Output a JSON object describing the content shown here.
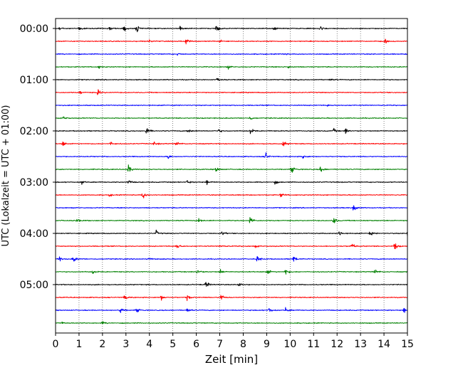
{
  "chart_data": {
    "type": "line",
    "xlabel": "Zeit  [min]",
    "ylabel": "UTC (Lokalzeit = UTC + 01:00)",
    "xlim": [
      0,
      15
    ],
    "x_ticks": [
      0,
      1,
      2,
      3,
      4,
      5,
      6,
      7,
      8,
      9,
      10,
      11,
      12,
      13,
      14,
      15
    ],
    "y_tick_labels": [
      "00:00",
      "01:00",
      "02:00",
      "03:00",
      "04:00",
      "05:00"
    ],
    "minutes_per_trace": 15,
    "trace_colors": [
      "#000000",
      "#ff0000",
      "#0000ff",
      "#008000"
    ],
    "grid": "vertical-dotted",
    "traces": [
      {
        "start": "00:00",
        "color": "#000000",
        "events": [
          [
            0.15,
            0.5
          ],
          [
            1.0,
            0.7
          ],
          [
            2.3,
            0.5
          ],
          [
            2.9,
            0.7
          ],
          [
            3.45,
            0.9
          ],
          [
            5.3,
            0.5
          ],
          [
            6.85,
            1.0
          ],
          [
            9.3,
            0.4
          ],
          [
            11.25,
            0.9
          ]
        ]
      },
      {
        "start": "00:15",
        "color": "#ff0000",
        "events": [
          [
            4.0,
            0.4
          ],
          [
            5.55,
            0.7
          ],
          [
            7.0,
            0.3
          ],
          [
            14.05,
            0.4
          ]
        ]
      },
      {
        "start": "00:30",
        "color": "#0000ff",
        "events": [
          [
            5.2,
            0.25
          ],
          [
            9.7,
            0.2
          ]
        ]
      },
      {
        "start": "00:45",
        "color": "#008000",
        "events": [
          [
            1.85,
            0.3
          ],
          [
            7.35,
            0.4
          ],
          [
            9.9,
            0.3
          ]
        ]
      },
      {
        "start": "01:00",
        "color": "#000000",
        "events": [
          [
            6.9,
            0.4
          ],
          [
            11.65,
            0.3
          ]
        ]
      },
      {
        "start": "01:15",
        "color": "#ff0000",
        "events": [
          [
            1.0,
            0.5
          ],
          [
            1.8,
            0.8
          ]
        ]
      },
      {
        "start": "01:30",
        "color": "#0000ff",
        "events": [
          [
            11.6,
            0.2
          ]
        ]
      },
      {
        "start": "01:45",
        "color": "#008000",
        "events": [
          [
            0.35,
            0.4
          ],
          [
            8.3,
            0.5
          ]
        ]
      },
      {
        "start": "02:00",
        "color": "#000000",
        "events": [
          [
            3.85,
            0.9
          ],
          [
            5.65,
            0.6
          ],
          [
            6.95,
            0.4
          ],
          [
            8.3,
            0.9
          ],
          [
            11.85,
            0.5
          ],
          [
            12.35,
            0.7
          ]
        ]
      },
      {
        "start": "02:15",
        "color": "#ff0000",
        "events": [
          [
            0.3,
            0.6
          ],
          [
            2.35,
            0.6
          ],
          [
            4.2,
            0.5
          ],
          [
            5.15,
            0.6
          ],
          [
            9.7,
            0.8
          ]
        ]
      },
      {
        "start": "02:30",
        "color": "#0000ff",
        "events": [
          [
            4.8,
            0.5
          ],
          [
            8.95,
            0.9
          ],
          [
            10.55,
            0.7
          ]
        ]
      },
      {
        "start": "02:45",
        "color": "#008000",
        "events": [
          [
            3.1,
            1.0
          ],
          [
            6.85,
            0.6
          ],
          [
            10.05,
            1.0
          ],
          [
            11.3,
            0.7
          ]
        ]
      },
      {
        "start": "03:00",
        "color": "#000000",
        "events": [
          [
            1.1,
            0.6
          ],
          [
            3.1,
            0.6
          ],
          [
            5.6,
            0.4
          ],
          [
            6.45,
            0.6
          ],
          [
            9.35,
            0.4
          ]
        ]
      },
      {
        "start": "03:15",
        "color": "#ff0000",
        "events": [
          [
            2.3,
            0.3
          ],
          [
            3.7,
            1.0
          ],
          [
            9.6,
            0.5
          ]
        ]
      },
      {
        "start": "03:30",
        "color": "#0000ff",
        "events": [
          [
            12.7,
            1.0
          ]
        ]
      },
      {
        "start": "03:45",
        "color": "#008000",
        "events": [
          [
            0.9,
            0.5
          ],
          [
            6.1,
            0.6
          ],
          [
            8.3,
            1.0
          ],
          [
            11.85,
            0.9
          ]
        ]
      },
      {
        "start": "04:00",
        "color": "#000000",
        "events": [
          [
            4.3,
            0.6
          ],
          [
            7.1,
            0.5
          ],
          [
            12.1,
            0.6
          ],
          [
            13.4,
            0.5
          ],
          [
            15.0,
            1.0
          ]
        ]
      },
      {
        "start": "04:15",
        "color": "#ff0000",
        "events": [
          [
            5.15,
            0.8
          ],
          [
            7.0,
            0.4
          ],
          [
            8.5,
            0.3
          ],
          [
            12.6,
            0.8
          ],
          [
            14.45,
            0.9
          ]
        ]
      },
      {
        "start": "04:30",
        "color": "#0000ff",
        "events": [
          [
            0.1,
            0.8
          ],
          [
            0.75,
            1.0
          ],
          [
            3.95,
            0.5
          ],
          [
            8.6,
            0.7
          ],
          [
            10.15,
            0.7
          ]
        ]
      },
      {
        "start": "04:45",
        "color": "#008000",
        "events": [
          [
            1.6,
            0.6
          ],
          [
            6.05,
            0.7
          ],
          [
            7.0,
            0.6
          ],
          [
            9.0,
            0.9
          ],
          [
            9.8,
            0.8
          ],
          [
            13.6,
            0.7
          ]
        ]
      },
      {
        "start": "05:00",
        "color": "#000000",
        "events": [
          [
            6.4,
            0.8
          ],
          [
            7.8,
            0.4
          ]
        ]
      },
      {
        "start": "05:15",
        "color": "#ff0000",
        "events": [
          [
            2.95,
            0.6
          ],
          [
            4.5,
            0.6
          ],
          [
            5.6,
            0.7
          ],
          [
            7.05,
            0.9
          ]
        ]
      },
      {
        "start": "05:30",
        "color": "#0000ff",
        "events": [
          [
            2.75,
            0.9
          ],
          [
            3.45,
            0.6
          ],
          [
            5.6,
            0.5
          ],
          [
            9.1,
            0.6
          ],
          [
            9.8,
            0.6
          ],
          [
            14.85,
            0.7
          ]
        ]
      },
      {
        "start": "05:45",
        "color": "#008000",
        "events": [
          [
            0.3,
            0.3
          ],
          [
            2.0,
            0.3
          ]
        ]
      }
    ]
  }
}
